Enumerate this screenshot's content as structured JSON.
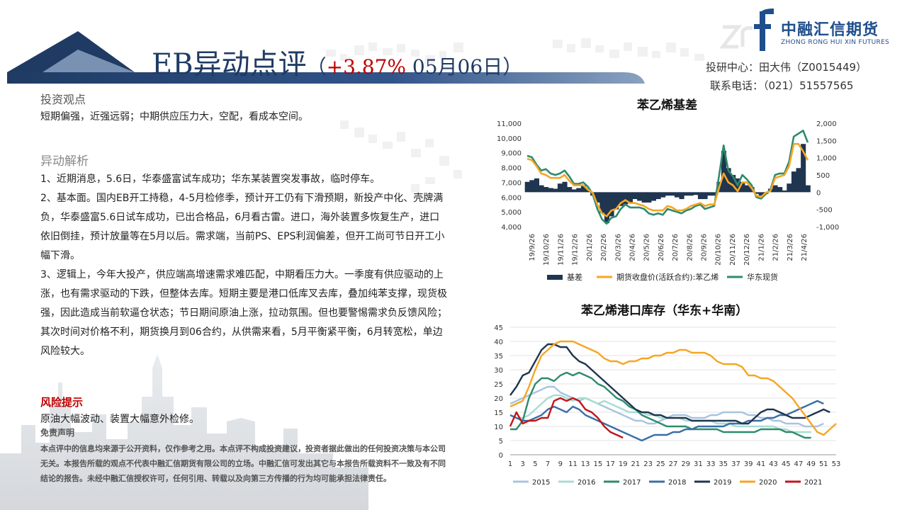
{
  "header": {
    "title_main": "EB异动点评",
    "title_paren_open": "（",
    "title_change": "+3.87%",
    "title_date": " 05月06日）",
    "logo_cn": "中融汇信期货",
    "logo_en": "ZHONG RONG HUI XIN FUTURES",
    "research_center": "投研中心：田大伟（Z0015449）",
    "phone": "联系电话：（021）51557565"
  },
  "left": {
    "view_heading": "投资观点",
    "view_text": "短期偏强，近强远弱；中期供应压力大，空配，看成本空间。",
    "analysis_heading": "异动解析",
    "paragraphs": [
      "1、近期消息，5.6日，华泰盛富试车成功；华东某装置突发事故，临时停车。",
      "2、基本面。国内EB开工持稳，4-5月检修季，预计开工仍有下滑预期，新投产中化、壳牌满负，华泰盛富5.6日试车成功，已出合格品，6月看古雷。进口，海外装置多恢复生产，进口依旧倒挂，预计放量等在5月以后。需求端，当前PS、EPS利润偏差，但开工尚可节日开工小幅下滑。",
      "3、逻辑上，今年大投产，供应端高增速需求难匹配，中期看压力大。一季度有供应驱动的上涨，也有需求驱动的下跌，但整体去库。短期主要是港口低库叉去库，叠加纯苯支撑，现货极强，因此造成当前软逼仓状态；节日期间原油上涨，拉动氛围。但也要警惕需求负反馈风险；其次时间对价格不利，期货换月到06合约，从供需来看，5月平衡紧平衡，6月转宽松，单边风险较大。"
    ],
    "risk_heading": "风险提示",
    "risk_text": "原油大幅波动、装置大幅意外检修。",
    "disclaimer_heading": "免责声明",
    "disclaimer_text": "本点评中的信息均来源于公开资料，仅作参考之用。本点评不构成投资建议，投资者据此做出的任何投资决策与本公司无关。本报告所载的观点不代表中融汇信期货有限公司的立场。中融汇信可发出其它与本报告所载资料不一致及有不同结论的报告。未经中融汇信授权许可，任何引用、转载以及向第三方传播的行为均可能承担法律责任。"
  },
  "colors": {
    "navy": "#1f3b63",
    "basis": "#1f3550",
    "futures": "#f5a623",
    "spot": "#2e8b6e",
    "c2015": "#a8c4e0",
    "c2016": "#a8dcd2",
    "c2017": "#2e8b6e",
    "c2018": "#3a6fa5",
    "c2019": "#1f3550",
    "c2020": "#f5a623",
    "c2021": "#c0161c"
  },
  "chart_data": [
    {
      "type": "line",
      "title": "苯乙烯基差",
      "x_ticks": [
        "19/9/26",
        "19/10/26",
        "19/11/26",
        "19/12/26",
        "20/1/26",
        "20/2/26",
        "20/3/26",
        "20/4/26",
        "20/5/26",
        "20/6/26",
        "20/7/26",
        "20/8/26",
        "20/9/26",
        "20/10/26",
        "20/11/26",
        "20/12/26",
        "21/1/26",
        "21/2/26",
        "21/3/26",
        "21/4/26"
      ],
      "y_left": {
        "min": 4000,
        "max": 11000,
        "ticks": [
          "11,000",
          "10,000",
          "9,000",
          "8,000",
          "7,000",
          "6,000",
          "5,000",
          "4,000"
        ]
      },
      "y_right": {
        "min": -1000,
        "max": 2000,
        "ticks": [
          "2,000",
          "1,500",
          "1,000",
          "500",
          "0",
          "-500",
          "-1,000"
        ]
      },
      "legend": [
        "基差",
        "期货收盘价(活跃合约):苯乙烯",
        "华东现货"
      ],
      "legend_position": "bottom",
      "series": [
        {
          "name": "基差",
          "kind": "area",
          "axis": "right",
          "values": [
            300,
            350,
            400,
            200,
            150,
            120,
            100,
            250,
            300,
            150,
            80,
            120,
            200,
            100,
            -100,
            -300,
            -600,
            -900,
            -700,
            -500,
            -400,
            -350,
            -300,
            -200,
            -250,
            -300,
            -300,
            -250,
            -200,
            -150,
            -100,
            -100,
            -150,
            -200,
            -100,
            -100,
            -80,
            -200,
            -200,
            -100,
            -100,
            300,
            1200,
            700,
            500,
            400,
            300,
            200,
            150,
            -50,
            -100,
            -50,
            100,
            200,
            150,
            50,
            250,
            600,
            700,
            1400,
            200
          ]
        },
        {
          "name": "期货收盘价(活跃合约):苯乙烯",
          "kind": "line",
          "axis": "left",
          "values": [
            8600,
            8500,
            8100,
            7600,
            7500,
            7300,
            7300,
            7300,
            7500,
            7100,
            6800,
            6800,
            6800,
            6500,
            6300,
            5500,
            4900,
            4700,
            5100,
            5200,
            5600,
            5800,
            5600,
            5600,
            5500,
            5400,
            5200,
            5100,
            5100,
            5100,
            5400,
            5300,
            5100,
            5100,
            5200,
            5400,
            5500,
            5600,
            5400,
            5500,
            5500,
            6600,
            7600,
            7000,
            6800,
            6400,
            7000,
            7000,
            6600,
            6100,
            6000,
            6300,
            6400,
            7300,
            7400,
            7500,
            8100,
            9600,
            9600,
            9100,
            8500
          ]
        },
        {
          "name": "华东现货",
          "kind": "line",
          "axis": "left",
          "values": [
            8800,
            8700,
            8200,
            7800,
            7900,
            7600,
            7500,
            7600,
            7800,
            7400,
            6900,
            6900,
            7000,
            6700,
            6200,
            5200,
            4500,
            4200,
            4600,
            4700,
            5200,
            5500,
            5300,
            5300,
            5300,
            5200,
            4900,
            4800,
            4900,
            4800,
            5200,
            5100,
            5000,
            4900,
            5100,
            5200,
            5400,
            5500,
            5200,
            5300,
            5400,
            7400,
            9500,
            7800,
            7400,
            6800,
            7500,
            7200,
            6800,
            6000,
            5900,
            6200,
            6500,
            7500,
            7600,
            7600,
            8400,
            10100,
            10300,
            10500,
            9700
          ]
        }
      ]
    },
    {
      "type": "line",
      "title": "苯乙烯港口库存（华东+华南）",
      "x": [
        1,
        2,
        3,
        4,
        5,
        6,
        7,
        8,
        9,
        10,
        11,
        12,
        13,
        14,
        15,
        16,
        17,
        18,
        19,
        20,
        21,
        22,
        23,
        24,
        25,
        26,
        27,
        28,
        29,
        30,
        31,
        32,
        33,
        34,
        35,
        36,
        37,
        38,
        39,
        40,
        41,
        42,
        43,
        44,
        45,
        46,
        47,
        48,
        49,
        50,
        51,
        52,
        53
      ],
      "x_ticks": [
        "1",
        "3",
        "5",
        "7",
        "9",
        "11",
        "13",
        "15",
        "17",
        "19",
        "21",
        "23",
        "25",
        "27",
        "29",
        "31",
        "33",
        "35",
        "37",
        "39",
        "41",
        "43",
        "45",
        "47",
        "49",
        "51",
        "53"
      ],
      "y": {
        "min": 0,
        "max": 45,
        "ticks": [
          "45",
          "40",
          "35",
          "30",
          "25",
          "20",
          "15",
          "10",
          "5",
          "0"
        ]
      },
      "legend_position": "bottom",
      "series": [
        {
          "name": "2015",
          "values": [
            18,
            19,
            20,
            21,
            22,
            23,
            24,
            24,
            22,
            21,
            20,
            19,
            20,
            19,
            18,
            17,
            16,
            15,
            14,
            13,
            12,
            12,
            11,
            11,
            12,
            13,
            14,
            14,
            14,
            13,
            13,
            13,
            14,
            14,
            15,
            15,
            15,
            15,
            14,
            14,
            13,
            13,
            12,
            12,
            11,
            11,
            11,
            10,
            10,
            10,
            11,
            null,
            null
          ]
        },
        {
          "name": "2016",
          "values": [
            14,
            13,
            13,
            14,
            16,
            18,
            20,
            21,
            21,
            20,
            19,
            20,
            20,
            19,
            18,
            19,
            18,
            17,
            16,
            15,
            15,
            15,
            14,
            14,
            13,
            13,
            13,
            13,
            12,
            12,
            12,
            12,
            12,
            11,
            11,
            11,
            10,
            10,
            10,
            10,
            10,
            10,
            10,
            9,
            9,
            8,
            8,
            8,
            8,
            null,
            null,
            null,
            null
          ]
        },
        {
          "name": "2017",
          "values": [
            9,
            9,
            12,
            20,
            25,
            27,
            27,
            26,
            28,
            29,
            28,
            29,
            28,
            27,
            25,
            24,
            22,
            20,
            19,
            17,
            16,
            14,
            13,
            12,
            11,
            10,
            10,
            10,
            10,
            9,
            9,
            9,
            9,
            9,
            8,
            8,
            8,
            8,
            8,
            8,
            9,
            9,
            9,
            9,
            8,
            8,
            7,
            6,
            6,
            null,
            null,
            null,
            null
          ]
        },
        {
          "name": "2018",
          "values": [
            14,
            13,
            12,
            12,
            13,
            14,
            16,
            17,
            16,
            15,
            17,
            16,
            14,
            13,
            12,
            11,
            10,
            9,
            8,
            7,
            6,
            5,
            6,
            7,
            7,
            7,
            8,
            8,
            9,
            9,
            10,
            10,
            10,
            10,
            10,
            11,
            11,
            11,
            12,
            12,
            12,
            13,
            13,
            14,
            14,
            15,
            16,
            17,
            18,
            19,
            18,
            null,
            null
          ]
        },
        {
          "name": "2019",
          "values": [
            21,
            24,
            28,
            29,
            33,
            37,
            39,
            39,
            38,
            38,
            35,
            33,
            32,
            30,
            28,
            26,
            24,
            22,
            20,
            18,
            16,
            15,
            15,
            14,
            14,
            13,
            13,
            13,
            13,
            12,
            12,
            12,
            12,
            12,
            12,
            12,
            12,
            11,
            11,
            13,
            15,
            16,
            16,
            15,
            14,
            13,
            13,
            13,
            14,
            15,
            16,
            15,
            null
          ]
        },
        {
          "name": "2020",
          "values": [
            17,
            18,
            19,
            24,
            30,
            35,
            37,
            39,
            40,
            40,
            40,
            39,
            38,
            37,
            36,
            34,
            33,
            33,
            32,
            33,
            33,
            34,
            34,
            35,
            35,
            36,
            36,
            37,
            37,
            36,
            36,
            36,
            35,
            33,
            32,
            32,
            32,
            31,
            28,
            28,
            27,
            27,
            26,
            24,
            22,
            20,
            17,
            14,
            11,
            8,
            7,
            9,
            11
          ]
        },
        {
          "name": "2021",
          "values": [
            10,
            15,
            11,
            12,
            12,
            13,
            13,
            19,
            20,
            19,
            20,
            19,
            16,
            15,
            13,
            10,
            8,
            7,
            6,
            null,
            null,
            null,
            null,
            null,
            null,
            null,
            null,
            null,
            null,
            null,
            null,
            null,
            null,
            null,
            null,
            null,
            null,
            null,
            null,
            null,
            null,
            null,
            null,
            null,
            null,
            null,
            null,
            null,
            null,
            null,
            null,
            null,
            null
          ]
        }
      ]
    }
  ]
}
